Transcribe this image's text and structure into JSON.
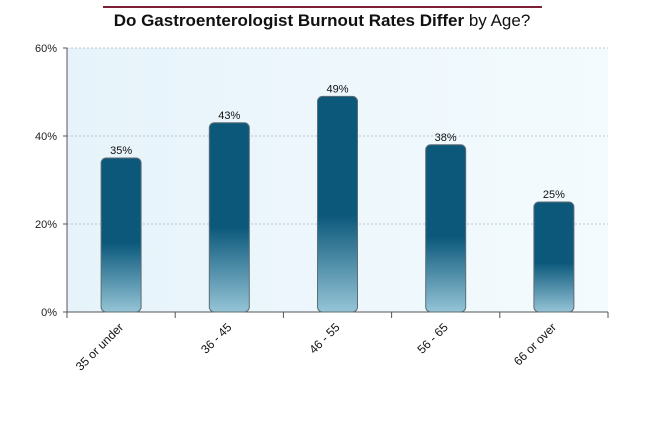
{
  "chart_data": {
    "type": "bar",
    "title_bold": "Do Gastroenterologist Burnout Rates Differ",
    "title_rest": " by Age?",
    "xlabel": "",
    "ylabel": "",
    "categories": [
      "35 or under",
      "36 - 45",
      "46 - 55",
      "56 - 65",
      "66 or over"
    ],
    "values": [
      35,
      43,
      49,
      38,
      25
    ],
    "value_labels": [
      "35%",
      "43%",
      "49%",
      "38%",
      "25%"
    ],
    "ylim": [
      0,
      60
    ],
    "yticks": [
      0,
      20,
      40,
      60
    ],
    "ytick_labels": [
      "0%",
      "20%",
      "40%",
      "60%"
    ],
    "grid": true,
    "legend": "none"
  },
  "colors": {
    "bar_dark": "#0b587b",
    "bar_light": "#95c4d6",
    "plot_bg_left": "#e6f3fa",
    "plot_bg_right": "#f4fbfe",
    "title_rule": "#7a1f35",
    "grid": "#b8c8d0",
    "axis": "#555555"
  }
}
